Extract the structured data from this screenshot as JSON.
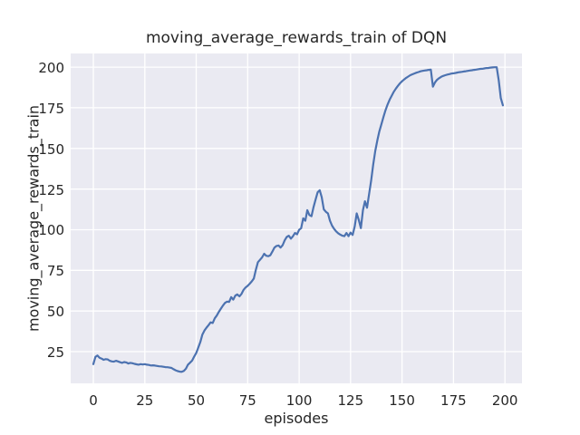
{
  "chart_data": {
    "type": "line",
    "title": "moving_average_rewards_train of DQN",
    "xlabel": "episodes",
    "ylabel": "moving_average_rewards_train",
    "legend": false,
    "grid": true,
    "xlim": [
      -11,
      208.3
    ],
    "ylim": [
      5.5,
      208.4
    ],
    "xticks": [
      0,
      25,
      50,
      75,
      100,
      125,
      150,
      175,
      200
    ],
    "yticks": [
      25,
      50,
      75,
      100,
      125,
      150,
      175,
      200
    ],
    "x_start": 0,
    "x_step": 1,
    "series": [
      {
        "name": "moving_average_rewards_train",
        "values": [
          17.3,
          21.8,
          22.6,
          21.3,
          20.7,
          20.0,
          20.4,
          20.2,
          19.4,
          19.0,
          18.9,
          19.4,
          19.0,
          18.5,
          18.1,
          18.6,
          18.4,
          17.7,
          18.1,
          17.9,
          17.5,
          17.2,
          17.0,
          17.3,
          17.1,
          17.3,
          17.0,
          16.8,
          16.5,
          16.6,
          16.4,
          16.2,
          16.0,
          15.9,
          15.7,
          15.5,
          15.4,
          15.2,
          15.0,
          14.2,
          13.5,
          13.0,
          12.7,
          12.6,
          13.2,
          14.6,
          17.0,
          18.2,
          19.5,
          22.0,
          24.1,
          27.5,
          31.0,
          35.5,
          38.0,
          39.8,
          41.3,
          43.0,
          42.6,
          45.5,
          47.2,
          49.5,
          51.5,
          53.3,
          55.0,
          55.8,
          55.6,
          58.5,
          57.0,
          59.5,
          60.2,
          59.0,
          60.5,
          63.0,
          64.5,
          65.5,
          66.8,
          68.2,
          70.0,
          75.5,
          80.0,
          81.5,
          83.0,
          85.2,
          84.0,
          83.7,
          84.3,
          86.5,
          89.0,
          90.0,
          90.3,
          89.0,
          90.5,
          93.5,
          95.5,
          96.3,
          94.5,
          96.0,
          98.0,
          97.2,
          100.0,
          100.9,
          107.0,
          105.5,
          112.0,
          109.0,
          108.3,
          114.0,
          118.5,
          123.0,
          124.3,
          120.0,
          112.5,
          111.0,
          110.0,
          105.5,
          102.5,
          100.5,
          99.0,
          97.8,
          97.0,
          96.3,
          96.0,
          98.0,
          96.0,
          98.2,
          96.8,
          102.0,
          110.0,
          106.0,
          101.0,
          112.0,
          117.5,
          113.5,
          122.0,
          130.0,
          140.0,
          148.5,
          155.0,
          160.5,
          165.0,
          169.5,
          173.5,
          177.0,
          180.0,
          182.5,
          184.8,
          186.8,
          188.5,
          190.0,
          191.3,
          192.4,
          193.4,
          194.2,
          195.0,
          195.6,
          196.1,
          196.6,
          197.0,
          197.4,
          197.7,
          197.9,
          198.1,
          198.3,
          198.4,
          188.0,
          190.5,
          192.2,
          193.2,
          194.0,
          194.6,
          195.0,
          195.4,
          195.7,
          196.0,
          196.2,
          196.4,
          196.7,
          196.9,
          197.1,
          197.3,
          197.5,
          197.7,
          197.9,
          198.1,
          198.3,
          198.5,
          198.7,
          198.9,
          199.0,
          199.2,
          199.4,
          199.5,
          199.7,
          199.8,
          199.9,
          199.9,
          192.0,
          181.0,
          176.5
        ]
      }
    ],
    "style": {
      "line_color": "#4c72b0",
      "line_width": 2.2,
      "axes_background": "#eaeaf2",
      "grid_color": "#ffffff",
      "figure_background": "#ffffff",
      "text_color": "#262626"
    }
  }
}
